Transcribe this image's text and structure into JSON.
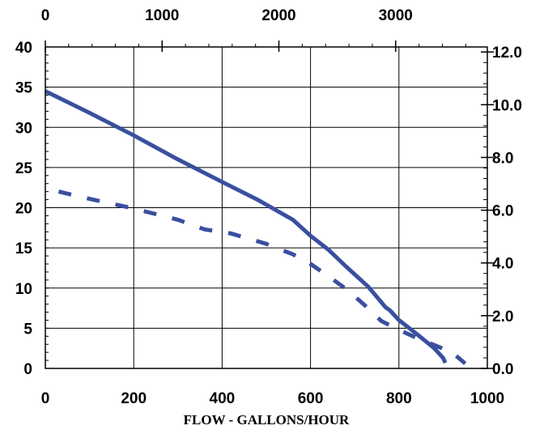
{
  "chart_data": {
    "type": "line",
    "title": "",
    "xlabel": "FLOW - GALLONS/HOUR",
    "xlim": [
      0,
      1000
    ],
    "x_ticks": [
      0,
      200,
      400,
      600,
      800,
      1000
    ],
    "x_top": {
      "label": "",
      "range": [
        0,
        3785
      ],
      "ticks": [
        0,
        1000,
        2000,
        3000
      ]
    },
    "ylabel": "",
    "ylim": [
      0,
      40
    ],
    "y_ticks": [
      0,
      5,
      10,
      15,
      20,
      25,
      30,
      35,
      40
    ],
    "y_right": {
      "label": "",
      "range": [
        0,
        12.19
      ],
      "ticks": [
        "0.0",
        "2.0",
        "4.0",
        "6.0",
        "8.0",
        "10.0",
        "12.0"
      ]
    },
    "grid": true,
    "legend": "none",
    "colors": {
      "series": "#3a4fa0",
      "grid": "#000000"
    },
    "series": [
      {
        "style": "solid",
        "x": [
          0,
          100,
          200,
          300,
          400,
          480,
          560,
          600,
          640,
          680,
          730,
          770,
          780,
          800,
          840,
          880,
          900,
          905
        ],
        "y": [
          34.5,
          31.8,
          29.0,
          26.0,
          23.2,
          21.0,
          18.5,
          16.5,
          14.8,
          12.7,
          10.2,
          7.6,
          7.2,
          6.0,
          4.3,
          2.5,
          1.3,
          0.7
        ]
      },
      {
        "style": "dashed",
        "x": [
          30,
          100,
          200,
          300,
          360,
          420,
          500,
          560,
          600,
          640,
          680,
          720,
          760,
          800,
          840,
          880,
          920,
          950
        ],
        "y": [
          22.0,
          21.1,
          19.9,
          18.5,
          17.3,
          16.8,
          15.5,
          14.2,
          13.0,
          11.5,
          9.9,
          8.0,
          5.9,
          4.8,
          3.8,
          2.9,
          2.0,
          0.6
        ]
      }
    ]
  }
}
